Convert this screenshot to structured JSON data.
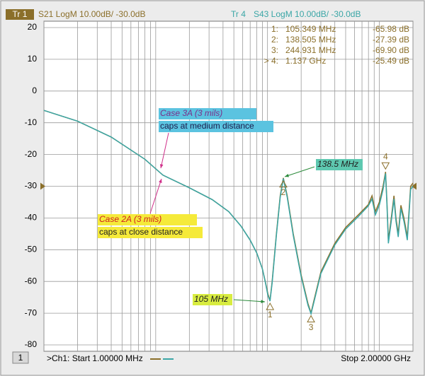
{
  "chart_data": {
    "type": "line",
    "header": {
      "trace1_badge": "Tr 1",
      "trace1_setting": "S21 LogM 10.00dB/ -30.0dB",
      "trace4_badge": "Tr 4",
      "trace4_setting": "S43 LogM 10.00dB/ -30.0dB"
    },
    "footer": {
      "channel_number": "1",
      "start": ">Ch1:  Start  1.00000 MHz",
      "stop": "Stop  2.00000 GHz"
    },
    "xscale": "log",
    "xlim": [
      1,
      2000
    ],
    "xticks": [
      1,
      2,
      3,
      4,
      5,
      6,
      7,
      8,
      9,
      10,
      20,
      30,
      40,
      50,
      60,
      70,
      80,
      90,
      100,
      200,
      300,
      400,
      500,
      600,
      700,
      800,
      900,
      1000,
      2000
    ],
    "ylim": [
      -82,
      22
    ],
    "yticks": [
      20,
      10,
      0,
      -10,
      -20,
      -30,
      -40,
      -50,
      -60,
      -70,
      -80
    ],
    "grid": true,
    "ref_level": -30,
    "x": [
      1,
      2,
      4,
      8,
      11.6,
      20,
      32,
      45,
      57.7,
      70,
      80,
      90,
      96,
      101,
      105.349,
      110,
      120,
      130,
      138.505,
      150,
      170,
      200,
      230,
      244.931,
      260,
      300,
      400,
      500,
      650,
      798,
      860,
      923,
      1000,
      1080,
      1137,
      1170,
      1205,
      1280,
      1352,
      1410,
      1476,
      1560,
      1660,
      1720,
      1780,
      1850,
      1906,
      2000
    ],
    "series": [
      {
        "name": "S21",
        "color": "#8b6f2a",
        "values": [
          -6.1,
          -9.5,
          -14.5,
          -21.5,
          -26.5,
          -30.5,
          -34.2,
          -38,
          -42.5,
          -47,
          -51,
          -56,
          -60.4,
          -64,
          -65.98,
          -60,
          -45,
          -33,
          -27.39,
          -33,
          -45,
          -58,
          -67,
          -69.9,
          -66,
          -57,
          -48,
          -43,
          -39,
          -35.8,
          -33,
          -38,
          -35,
          -30,
          -25.49,
          -35,
          -47,
          -40,
          -33,
          -40,
          -45,
          -36,
          -40,
          -43,
          -46,
          -37,
          -30,
          -29
        ]
      },
      {
        "name": "S43",
        "color": "#3aa6a6",
        "values": [
          -6.1,
          -9.5,
          -14.5,
          -21.5,
          -26.5,
          -30.5,
          -34.2,
          -38,
          -42.5,
          -47,
          -51,
          -56,
          -60.6,
          -64.5,
          -66.2,
          -60.5,
          -45.5,
          -33.5,
          -27.6,
          -33.5,
          -45.5,
          -58.5,
          -67.5,
          -70.2,
          -66.5,
          -57.5,
          -48.5,
          -43.5,
          -39.5,
          -36.2,
          -34,
          -39,
          -36,
          -31,
          -26,
          -36,
          -48,
          -41,
          -34,
          -41,
          -46,
          -37,
          -41,
          -44,
          -47,
          -38,
          -31,
          -30
        ]
      }
    ],
    "markers": {
      "names": [
        "1:",
        "2:",
        "3:",
        "> 4:"
      ],
      "ids": [
        "1",
        "2",
        "3",
        "4"
      ],
      "x": [
        105.349,
        138.505,
        244.931,
        1137
      ],
      "x_labels": [
        "105.349  MHz",
        "138.505  MHz",
        "244.931  MHz",
        "1.137  GHz"
      ],
      "values": [
        -65.98,
        -27.39,
        -69.9,
        -25.49
      ],
      "value_labels": [
        "-65.98 dB",
        "-27.39 dB",
        "-69.90 dB",
        "-25.49 dB"
      ]
    },
    "annotations": {
      "case3a_title": "Case 3A (3 mils)",
      "case3a_desc": "caps at medium distance",
      "case2a_title": "Case 2A (3 mils)",
      "case2a_desc": "caps at close distance",
      "peak_label": "138.5 MHz",
      "dip_label": "105 MHz"
    }
  }
}
